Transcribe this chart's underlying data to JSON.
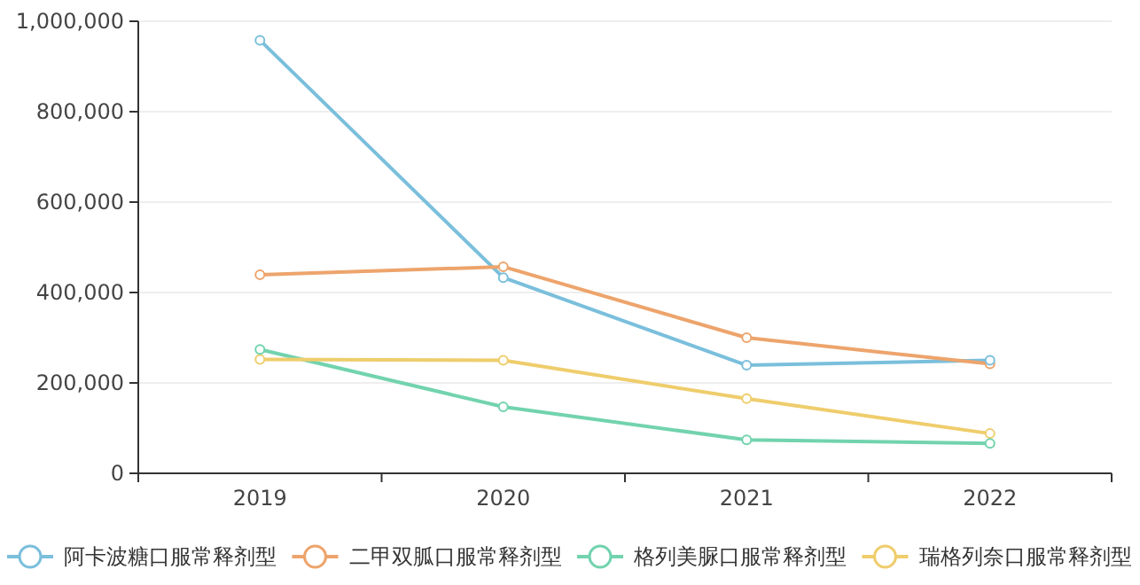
{
  "chart_data": {
    "type": "line",
    "categories": [
      "2019",
      "2020",
      "2021",
      "2022"
    ],
    "series": [
      {
        "name": "阿卡波糖口服常释剂型",
        "color": "#7abfdc",
        "values": [
          958000,
          433000,
          239000,
          250000
        ]
      },
      {
        "name": "二甲双胍口服常释剂型",
        "color": "#eda46c",
        "values": [
          439000,
          457000,
          300000,
          242000
        ]
      },
      {
        "name": "格列美脲口服常释剂型",
        "color": "#72d3ae",
        "values": [
          274000,
          147000,
          74000,
          66000
        ]
      },
      {
        "name": "瑞格列奈口服常释剂型",
        "color": "#efcd6c",
        "values": [
          252000,
          250000,
          165000,
          88000
        ]
      }
    ],
    "ylim": [
      0,
      1000000
    ],
    "yticks": [
      {
        "value": 0,
        "label": "0"
      },
      {
        "value": 200000,
        "label": "200,000"
      },
      {
        "value": 400000,
        "label": "400,000"
      },
      {
        "value": 600000,
        "label": "600,000"
      },
      {
        "value": 800000,
        "label": "800,000"
      },
      {
        "value": 1000000,
        "label": "1,000,000"
      }
    ],
    "grid": "y",
    "legend": "bottom",
    "marker": "circle",
    "line_style": "solid"
  }
}
